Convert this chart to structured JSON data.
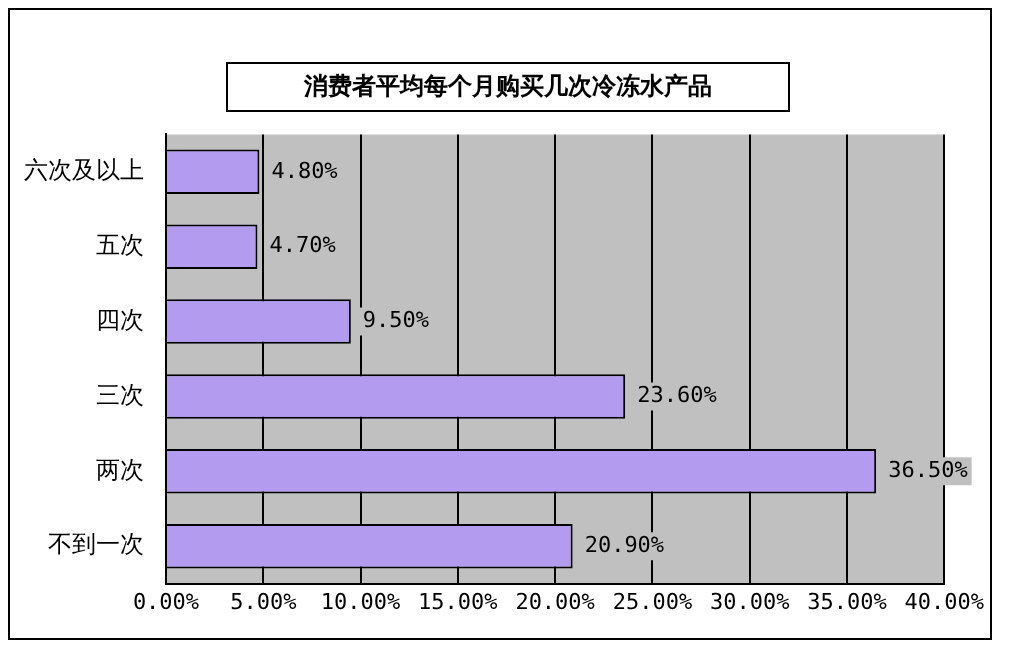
{
  "chart_data": {
    "type": "bar",
    "orientation": "horizontal",
    "title": "消费者平均每个月购买几次冷冻水产品",
    "categories": [
      "六次及以上",
      "五次",
      "四次",
      "三次",
      "两次",
      "不到一次"
    ],
    "values": [
      4.8,
      4.7,
      9.5,
      23.6,
      36.5,
      20.9
    ],
    "value_labels": [
      "4.80%",
      "4.70%",
      "9.50%",
      "23.60%",
      "36.50%",
      "20.90%"
    ],
    "color": "#b39cf0",
    "xlim": [
      0,
      40
    ],
    "xticks": [
      {
        "value": 0,
        "label": "0.00%"
      },
      {
        "value": 5,
        "label": "5.00%"
      },
      {
        "value": 10,
        "label": "10.00%"
      },
      {
        "value": 15,
        "label": "15.00%"
      },
      {
        "value": 20,
        "label": "20.00%"
      },
      {
        "value": 25,
        "label": "25.00%"
      },
      {
        "value": 30,
        "label": "30.00%"
      },
      {
        "value": 35,
        "label": "35.00%"
      },
      {
        "value": 40,
        "label": "40.00%"
      }
    ],
    "grid": "x",
    "legend": false
  }
}
